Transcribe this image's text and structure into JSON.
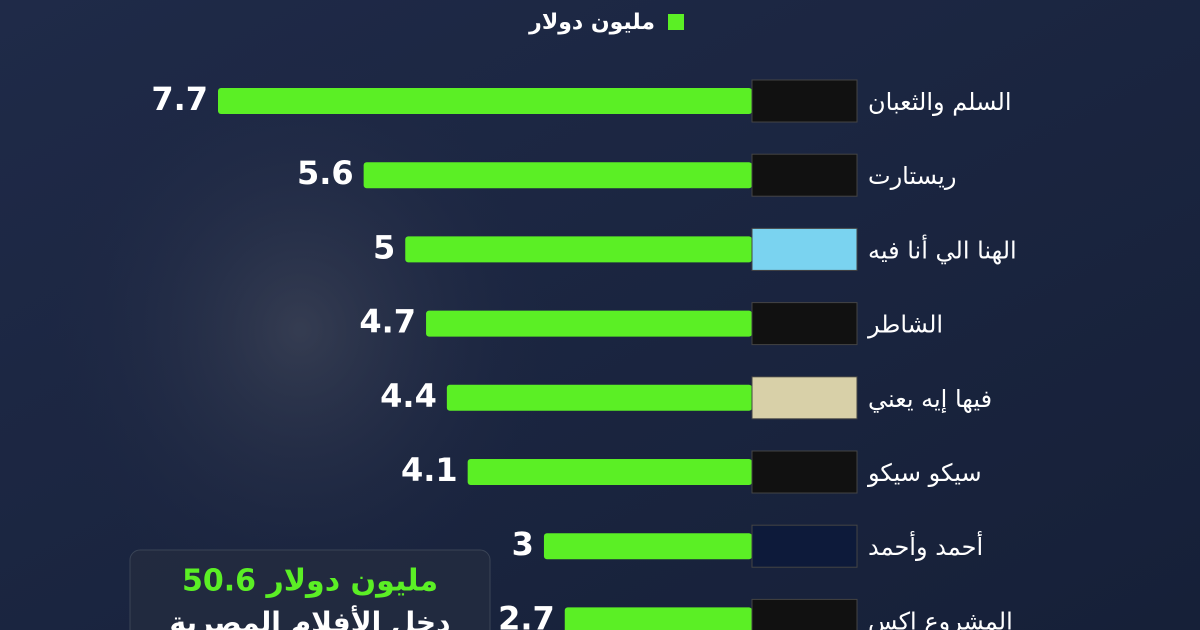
{
  "chart_data": {
    "type": "bar",
    "orientation": "horizontal",
    "categories": [
      "السلم والثعبان",
      "ريستارت",
      "الهنا الي أنا فيه",
      "الشاطر",
      "فيها إيه يعني",
      "سيكو سيكو",
      "أحمد وأحمد",
      "المشروع اكس"
    ],
    "series": [
      {
        "name": "مليون دولار",
        "color": "#5bef25",
        "values": [
          7.7,
          5.6,
          5,
          4.7,
          4.4,
          4.1,
          3,
          2.7
        ]
      }
    ],
    "annotations": [
      "50.6 مليون دولار",
      "دخل الأفلام المصرية"
    ]
  }
}
